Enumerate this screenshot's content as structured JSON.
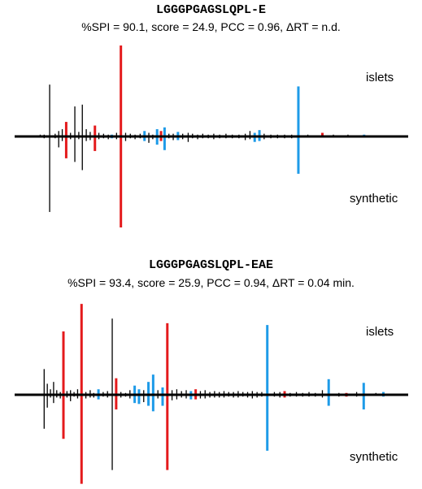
{
  "chart_data": [
    {
      "type": "mirror-spectrum",
      "title": "LGGGPGAGSLQPL-E",
      "subtitle": "%SPI = 90.1, score = 24.9, PCC = 0.96, ΔRT = n.d.",
      "top_label": "islets",
      "bottom_label": "synthetic",
      "colors": {
        "unassigned": "#000000",
        "b_ion": "#e41a1c",
        "y_ion": "#1e9be8"
      },
      "peaks": [
        {
          "x": 0.065,
          "top": 0.02,
          "bottom": 0.01,
          "c": "k"
        },
        {
          "x": 0.075,
          "top": 0.02,
          "bottom": 0.02,
          "c": "k"
        },
        {
          "x": 0.089,
          "top": 0.57,
          "bottom": 0.83,
          "c": "k"
        },
        {
          "x": 0.103,
          "top": 0.03,
          "bottom": 0.02,
          "c": "k"
        },
        {
          "x": 0.112,
          "top": 0.06,
          "bottom": 0.12,
          "c": "k"
        },
        {
          "x": 0.121,
          "top": 0.08,
          "bottom": 0.05,
          "c": "k"
        },
        {
          "x": 0.131,
          "top": 0.16,
          "bottom": 0.24,
          "c": "r"
        },
        {
          "x": 0.142,
          "top": 0.04,
          "bottom": 0.03,
          "c": "k"
        },
        {
          "x": 0.153,
          "top": 0.33,
          "bottom": 0.28,
          "c": "k"
        },
        {
          "x": 0.163,
          "top": 0.05,
          "bottom": 0.03,
          "c": "k"
        },
        {
          "x": 0.172,
          "top": 0.35,
          "bottom": 0.37,
          "c": "k"
        },
        {
          "x": 0.182,
          "top": 0.08,
          "bottom": 0.05,
          "c": "k"
        },
        {
          "x": 0.192,
          "top": 0.05,
          "bottom": 0.04,
          "c": "k"
        },
        {
          "x": 0.204,
          "top": 0.12,
          "bottom": 0.16,
          "c": "r"
        },
        {
          "x": 0.214,
          "top": 0.04,
          "bottom": 0.03,
          "c": "k"
        },
        {
          "x": 0.226,
          "top": 0.03,
          "bottom": 0.02,
          "c": "k"
        },
        {
          "x": 0.238,
          "top": 0.02,
          "bottom": 0.03,
          "c": "k"
        },
        {
          "x": 0.247,
          "top": 0.02,
          "bottom": 0.02,
          "c": "b"
        },
        {
          "x": 0.259,
          "top": 0.04,
          "bottom": 0.03,
          "c": "k"
        },
        {
          "x": 0.27,
          "top": 1.0,
          "bottom": 1.0,
          "c": "r"
        },
        {
          "x": 0.282,
          "top": 0.04,
          "bottom": 0.05,
          "c": "k"
        },
        {
          "x": 0.294,
          "top": 0.03,
          "bottom": 0.02,
          "c": "k"
        },
        {
          "x": 0.306,
          "top": 0.02,
          "bottom": 0.03,
          "c": "k"
        },
        {
          "x": 0.319,
          "top": 0.03,
          "bottom": 0.02,
          "c": "k"
        },
        {
          "x": 0.33,
          "top": 0.06,
          "bottom": 0.05,
          "c": "b"
        },
        {
          "x": 0.341,
          "top": 0.04,
          "bottom": 0.07,
          "c": "k"
        },
        {
          "x": 0.351,
          "top": 0.02,
          "bottom": 0.03,
          "c": "k"
        },
        {
          "x": 0.362,
          "top": 0.08,
          "bottom": 0.09,
          "c": "b"
        },
        {
          "x": 0.372,
          "top": 0.06,
          "bottom": 0.05,
          "c": "r"
        },
        {
          "x": 0.381,
          "top": 0.1,
          "bottom": 0.15,
          "c": "b"
        },
        {
          "x": 0.392,
          "top": 0.03,
          "bottom": 0.02,
          "c": "k"
        },
        {
          "x": 0.403,
          "top": 0.03,
          "bottom": 0.04,
          "c": "k"
        },
        {
          "x": 0.415,
          "top": 0.05,
          "bottom": 0.04,
          "c": "b"
        },
        {
          "x": 0.427,
          "top": 0.03,
          "bottom": 0.03,
          "c": "k"
        },
        {
          "x": 0.441,
          "top": 0.04,
          "bottom": 0.06,
          "c": "k"
        },
        {
          "x": 0.452,
          "top": 0.03,
          "bottom": 0.02,
          "c": "k"
        },
        {
          "x": 0.465,
          "top": 0.02,
          "bottom": 0.03,
          "c": "k"
        },
        {
          "x": 0.478,
          "top": 0.03,
          "bottom": 0.02,
          "c": "k"
        },
        {
          "x": 0.492,
          "top": 0.02,
          "bottom": 0.02,
          "c": "k"
        },
        {
          "x": 0.506,
          "top": 0.03,
          "bottom": 0.03,
          "c": "k"
        },
        {
          "x": 0.521,
          "top": 0.02,
          "bottom": 0.02,
          "c": "k"
        },
        {
          "x": 0.537,
          "top": 0.03,
          "bottom": 0.02,
          "c": "k"
        },
        {
          "x": 0.553,
          "top": 0.02,
          "bottom": 0.02,
          "c": "k"
        },
        {
          "x": 0.57,
          "top": 0.02,
          "bottom": 0.02,
          "c": "k"
        },
        {
          "x": 0.586,
          "top": 0.03,
          "bottom": 0.04,
          "c": "k"
        },
        {
          "x": 0.598,
          "top": 0.06,
          "bottom": 0.03,
          "c": "k"
        },
        {
          "x": 0.61,
          "top": 0.04,
          "bottom": 0.06,
          "c": "b"
        },
        {
          "x": 0.622,
          "top": 0.07,
          "bottom": 0.05,
          "c": "b"
        },
        {
          "x": 0.634,
          "top": 0.03,
          "bottom": 0.03,
          "c": "k"
        },
        {
          "x": 0.651,
          "top": 0.02,
          "bottom": 0.02,
          "c": "k"
        },
        {
          "x": 0.668,
          "top": 0.02,
          "bottom": 0.02,
          "c": "k"
        },
        {
          "x": 0.686,
          "top": 0.02,
          "bottom": 0.02,
          "c": "k"
        },
        {
          "x": 0.704,
          "top": 0.02,
          "bottom": 0.02,
          "c": "k"
        },
        {
          "x": 0.721,
          "top": 0.55,
          "bottom": 0.41,
          "c": "b"
        },
        {
          "x": 0.745,
          "top": 0.02,
          "bottom": 0.01,
          "c": "k"
        },
        {
          "x": 0.782,
          "top": 0.04,
          "bottom": 0.0,
          "c": "r"
        },
        {
          "x": 0.81,
          "top": 0.02,
          "bottom": 0.01,
          "c": "k"
        },
        {
          "x": 0.847,
          "top": 0.02,
          "bottom": 0.01,
          "c": "k"
        },
        {
          "x": 0.888,
          "top": 0.02,
          "bottom": 0.01,
          "c": "b"
        }
      ]
    },
    {
      "type": "mirror-spectrum",
      "title": "LGGGPGAGSLQPL-EAE",
      "subtitle": "%SPI = 93.4, score = 25.9, PCC = 0.94, ΔRT = 0.04 min.",
      "top_label": "islets",
      "bottom_label": "synthetic",
      "colors": {
        "unassigned": "#000000",
        "b_ion": "#e41a1c",
        "y_ion": "#1e9be8"
      },
      "peaks": [
        {
          "x": 0.075,
          "top": 0.28,
          "bottom": 0.37,
          "c": "k"
        },
        {
          "x": 0.083,
          "top": 0.12,
          "bottom": 0.14,
          "c": "k"
        },
        {
          "x": 0.091,
          "top": 0.06,
          "bottom": 0.03,
          "c": "k"
        },
        {
          "x": 0.099,
          "top": 0.14,
          "bottom": 0.09,
          "c": "k"
        },
        {
          "x": 0.107,
          "top": 0.05,
          "bottom": 0.03,
          "c": "k"
        },
        {
          "x": 0.116,
          "top": 0.03,
          "bottom": 0.04,
          "c": "k"
        },
        {
          "x": 0.124,
          "top": 0.69,
          "bottom": 0.48,
          "c": "r"
        },
        {
          "x": 0.133,
          "top": 0.04,
          "bottom": 0.03,
          "c": "k"
        },
        {
          "x": 0.142,
          "top": 0.05,
          "bottom": 0.07,
          "c": "k"
        },
        {
          "x": 0.151,
          "top": 0.03,
          "bottom": 0.02,
          "c": "k"
        },
        {
          "x": 0.16,
          "top": 0.06,
          "bottom": 0.04,
          "c": "k"
        },
        {
          "x": 0.17,
          "top": 0.99,
          "bottom": 0.97,
          "c": "r"
        },
        {
          "x": 0.181,
          "top": 0.03,
          "bottom": 0.04,
          "c": "k"
        },
        {
          "x": 0.192,
          "top": 0.05,
          "bottom": 0.03,
          "c": "k"
        },
        {
          "x": 0.201,
          "top": 0.02,
          "bottom": 0.03,
          "c": "k"
        },
        {
          "x": 0.213,
          "top": 0.06,
          "bottom": 0.05,
          "c": "b"
        },
        {
          "x": 0.225,
          "top": 0.03,
          "bottom": 0.02,
          "c": "k"
        },
        {
          "x": 0.236,
          "top": 0.04,
          "bottom": 0.03,
          "c": "k"
        },
        {
          "x": 0.248,
          "top": 0.83,
          "bottom": 0.82,
          "c": "k"
        },
        {
          "x": 0.258,
          "top": 0.18,
          "bottom": 0.16,
          "c": "r"
        },
        {
          "x": 0.27,
          "top": 0.03,
          "bottom": 0.03,
          "c": "k"
        },
        {
          "x": 0.282,
          "top": 0.02,
          "bottom": 0.02,
          "c": "k"
        },
        {
          "x": 0.293,
          "top": 0.05,
          "bottom": 0.04,
          "c": "k"
        },
        {
          "x": 0.305,
          "top": 0.1,
          "bottom": 0.09,
          "c": "b"
        },
        {
          "x": 0.316,
          "top": 0.06,
          "bottom": 0.1,
          "c": "b"
        },
        {
          "x": 0.328,
          "top": 0.05,
          "bottom": 0.08,
          "c": "k"
        },
        {
          "x": 0.34,
          "top": 0.14,
          "bottom": 0.12,
          "c": "b"
        },
        {
          "x": 0.352,
          "top": 0.22,
          "bottom": 0.18,
          "c": "b"
        },
        {
          "x": 0.364,
          "top": 0.05,
          "bottom": 0.04,
          "c": "k"
        },
        {
          "x": 0.376,
          "top": 0.08,
          "bottom": 0.12,
          "c": "b"
        },
        {
          "x": 0.388,
          "top": 0.78,
          "bottom": 0.82,
          "c": "r"
        },
        {
          "x": 0.4,
          "top": 0.05,
          "bottom": 0.06,
          "c": "k"
        },
        {
          "x": 0.412,
          "top": 0.06,
          "bottom": 0.05,
          "c": "k"
        },
        {
          "x": 0.424,
          "top": 0.04,
          "bottom": 0.03,
          "c": "k"
        },
        {
          "x": 0.436,
          "top": 0.05,
          "bottom": 0.04,
          "c": "k"
        },
        {
          "x": 0.448,
          "top": 0.04,
          "bottom": 0.05,
          "c": "b"
        },
        {
          "x": 0.46,
          "top": 0.06,
          "bottom": 0.05,
          "c": "r"
        },
        {
          "x": 0.472,
          "top": 0.04,
          "bottom": 0.04,
          "c": "k"
        },
        {
          "x": 0.484,
          "top": 0.05,
          "bottom": 0.04,
          "c": "k"
        },
        {
          "x": 0.496,
          "top": 0.03,
          "bottom": 0.03,
          "c": "k"
        },
        {
          "x": 0.508,
          "top": 0.04,
          "bottom": 0.03,
          "c": "k"
        },
        {
          "x": 0.52,
          "top": 0.03,
          "bottom": 0.03,
          "c": "k"
        },
        {
          "x": 0.532,
          "top": 0.04,
          "bottom": 0.03,
          "c": "k"
        },
        {
          "x": 0.544,
          "top": 0.03,
          "bottom": 0.02,
          "c": "k"
        },
        {
          "x": 0.556,
          "top": 0.03,
          "bottom": 0.03,
          "c": "k"
        },
        {
          "x": 0.568,
          "top": 0.04,
          "bottom": 0.03,
          "c": "k"
        },
        {
          "x": 0.58,
          "top": 0.03,
          "bottom": 0.02,
          "c": "k"
        },
        {
          "x": 0.592,
          "top": 0.03,
          "bottom": 0.03,
          "c": "k"
        },
        {
          "x": 0.604,
          "top": 0.04,
          "bottom": 0.04,
          "c": "k"
        },
        {
          "x": 0.616,
          "top": 0.03,
          "bottom": 0.03,
          "c": "k"
        },
        {
          "x": 0.628,
          "top": 0.03,
          "bottom": 0.02,
          "c": "k"
        },
        {
          "x": 0.642,
          "top": 0.76,
          "bottom": 0.61,
          "c": "b"
        },
        {
          "x": 0.66,
          "top": 0.03,
          "bottom": 0.02,
          "c": "k"
        },
        {
          "x": 0.674,
          "top": 0.03,
          "bottom": 0.03,
          "c": "k"
        },
        {
          "x": 0.686,
          "top": 0.04,
          "bottom": 0.03,
          "c": "r"
        },
        {
          "x": 0.7,
          "top": 0.02,
          "bottom": 0.02,
          "c": "k"
        },
        {
          "x": 0.716,
          "top": 0.03,
          "bottom": 0.02,
          "c": "k"
        },
        {
          "x": 0.732,
          "top": 0.02,
          "bottom": 0.02,
          "c": "k"
        },
        {
          "x": 0.748,
          "top": 0.03,
          "bottom": 0.02,
          "c": "k"
        },
        {
          "x": 0.764,
          "top": 0.02,
          "bottom": 0.02,
          "c": "k"
        },
        {
          "x": 0.782,
          "top": 0.05,
          "bottom": 0.03,
          "c": "k"
        },
        {
          "x": 0.798,
          "top": 0.17,
          "bottom": 0.12,
          "c": "b"
        },
        {
          "x": 0.824,
          "top": 0.02,
          "bottom": 0.02,
          "c": "k"
        },
        {
          "x": 0.843,
          "top": 0.02,
          "bottom": 0.02,
          "c": "r"
        },
        {
          "x": 0.869,
          "top": 0.03,
          "bottom": 0.02,
          "c": "k"
        },
        {
          "x": 0.887,
          "top": 0.13,
          "bottom": 0.16,
          "c": "b"
        },
        {
          "x": 0.918,
          "top": 0.02,
          "bottom": 0.01,
          "c": "k"
        },
        {
          "x": 0.937,
          "top": 0.03,
          "bottom": 0.02,
          "c": "b"
        }
      ]
    }
  ]
}
